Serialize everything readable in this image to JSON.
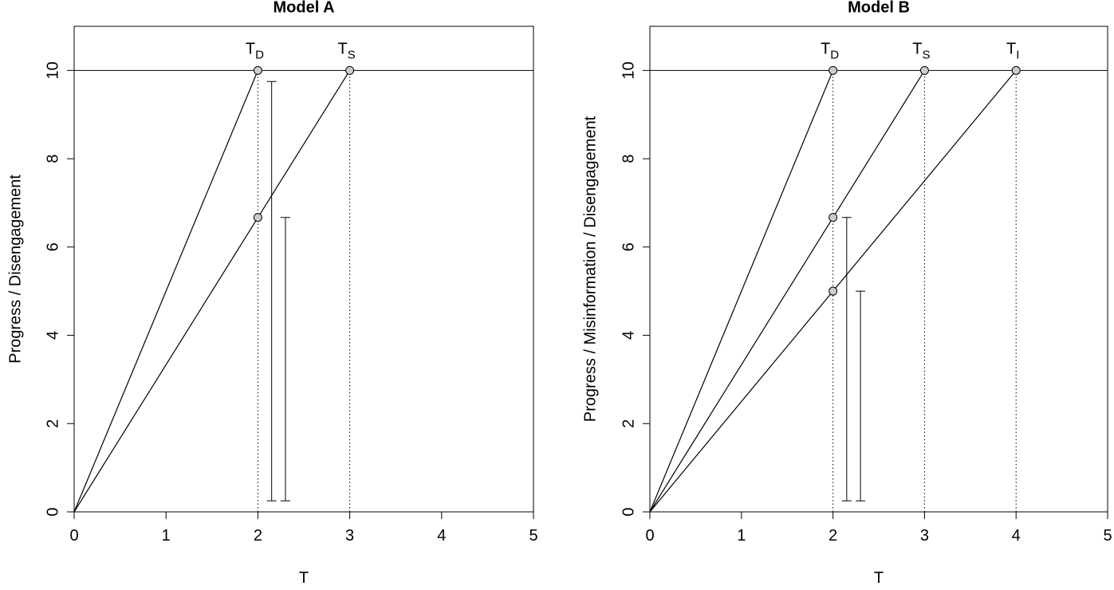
{
  "chart_data": [
    {
      "type": "line",
      "title": "Model A",
      "xlabel": "T",
      "ylabel": "Progress / Disengagement",
      "xlim": [
        0,
        5
      ],
      "ylim": [
        0,
        11
      ],
      "xticks": [
        0,
        1,
        2,
        3,
        4,
        5
      ],
      "yticks": [
        0,
        2,
        4,
        6,
        8,
        10
      ],
      "grid": false,
      "color": "#000000",
      "series": [
        {
          "x": [
            0,
            2
          ],
          "values": [
            0,
            10
          ]
        },
        {
          "x": [
            0,
            3
          ],
          "values": [
            0,
            10
          ]
        }
      ],
      "hline": 10,
      "vlines": [
        2,
        3
      ],
      "points": {
        "x": [
          2,
          3,
          2
        ],
        "values": [
          10,
          10,
          6.67
        ],
        "color": "#cccccc",
        "labels": [
          {
            "text": "T",
            "sub": "D"
          },
          {
            "text": "T",
            "sub": "S"
          },
          null
        ]
      },
      "brackets": [
        {
          "x": 2.15,
          "low": 0.25,
          "high": 9.75
        },
        {
          "x": 2.3,
          "low": 0.25,
          "high": 6.67
        }
      ]
    },
    {
      "type": "line",
      "title": "Model B",
      "xlabel": "T",
      "ylabel": "Progress / Misinformation / Disengagement",
      "xlim": [
        0,
        5
      ],
      "ylim": [
        0,
        11
      ],
      "xticks": [
        0,
        1,
        2,
        3,
        4,
        5
      ],
      "yticks": [
        0,
        2,
        4,
        6,
        8,
        10
      ],
      "grid": false,
      "color": "#000000",
      "series": [
        {
          "x": [
            0,
            2
          ],
          "values": [
            0,
            10
          ]
        },
        {
          "x": [
            0,
            3
          ],
          "values": [
            0,
            10
          ]
        },
        {
          "x": [
            0,
            4
          ],
          "values": [
            0,
            10
          ]
        }
      ],
      "hline": 10,
      "vlines": [
        2,
        3,
        4
      ],
      "points": {
        "x": [
          2,
          3,
          4,
          2,
          2
        ],
        "values": [
          10,
          10,
          10,
          6.67,
          5
        ],
        "color": "#cccccc",
        "labels": [
          {
            "text": "T",
            "sub": "D"
          },
          {
            "text": "T",
            "sub": "S"
          },
          {
            "text": "T",
            "sub": "I"
          },
          null,
          null
        ]
      },
      "brackets": [
        {
          "x": 2.15,
          "low": 0.25,
          "high": 6.67
        },
        {
          "x": 2.3,
          "low": 0.25,
          "high": 5
        }
      ]
    }
  ]
}
